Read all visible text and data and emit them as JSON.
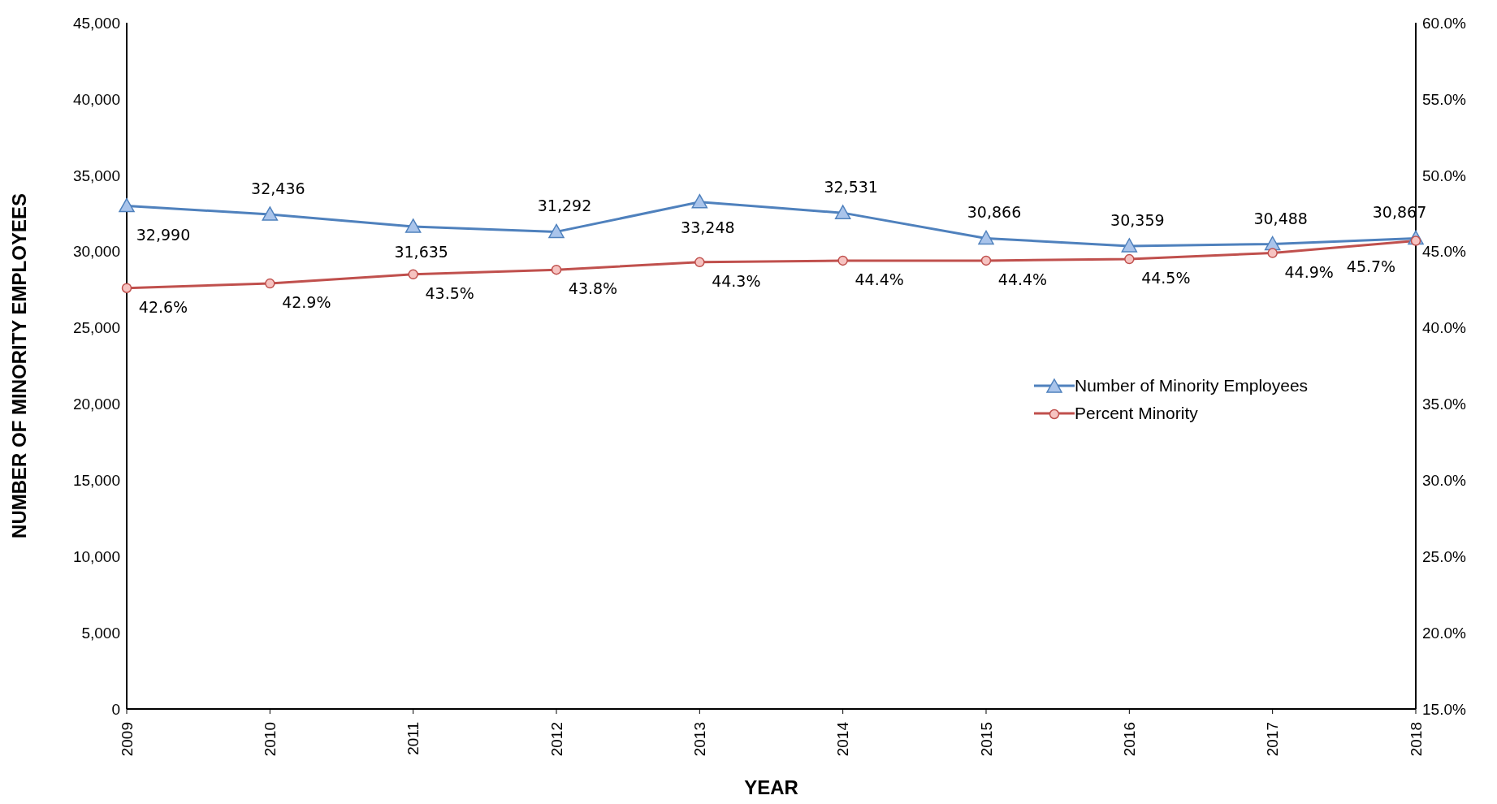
{
  "chart_data": {
    "type": "line",
    "xlabel": "YEAR",
    "ylabel": "NUMBER OF MINORITY EMPLOYEES",
    "categories": [
      "2009",
      "2010",
      "2011",
      "2012",
      "2013",
      "2014",
      "2015",
      "2016",
      "2017",
      "2018"
    ],
    "series": [
      {
        "name": "Number of Minority Employees",
        "color": "#4f81bd",
        "marker": "triangle",
        "values": [
          32990,
          32436,
          31635,
          31292,
          33248,
          32531,
          30866,
          30359,
          30488,
          30867
        ],
        "value_labels": [
          "32,990",
          "32,436",
          "31,635",
          "31,292",
          "33,248",
          "32,531",
          "30,866",
          "30,359",
          "30,488",
          "30,867"
        ]
      },
      {
        "name": "Percent Minority",
        "color": "#c0504d",
        "marker": "circle",
        "axis": "y2",
        "values": [
          42.6,
          42.9,
          43.5,
          43.8,
          44.3,
          44.4,
          44.4,
          44.5,
          44.9,
          45.7
        ],
        "value_labels": [
          "42.6%",
          "42.9%",
          "43.5%",
          "43.8%",
          "44.3%",
          "44.4%",
          "44.4%",
          "44.5%",
          "44.9%",
          "45.7%"
        ]
      }
    ],
    "ylim": [
      0,
      45000
    ],
    "yticks": [
      {
        "value": 0,
        "label": "0"
      },
      {
        "value": 5000,
        "label": "5,000"
      },
      {
        "value": 10000,
        "label": "10,000"
      },
      {
        "value": 15000,
        "label": "15,000"
      },
      {
        "value": 20000,
        "label": "20,000"
      },
      {
        "value": 25000,
        "label": "25,000"
      },
      {
        "value": 30000,
        "label": "30,000"
      },
      {
        "value": 35000,
        "label": "35,000"
      },
      {
        "value": 40000,
        "label": "40,000"
      },
      {
        "value": 45000,
        "label": "45,000"
      }
    ],
    "y2lim": [
      15,
      60
    ],
    "y2ticks": [
      {
        "value": 15,
        "label": "15.0%"
      },
      {
        "value": 20,
        "label": "20.0%"
      },
      {
        "value": 25,
        "label": "25.0%"
      },
      {
        "value": 30,
        "label": "30.0%"
      },
      {
        "value": 35,
        "label": "35.0%"
      },
      {
        "value": 40,
        "label": "40.0%"
      },
      {
        "value": 45,
        "label": "45.0%"
      },
      {
        "value": 50,
        "label": "50.0%"
      },
      {
        "value": 55,
        "label": "55.0%"
      },
      {
        "value": 60,
        "label": "60.0%"
      }
    ],
    "legend": "right",
    "line_style": "solid"
  }
}
